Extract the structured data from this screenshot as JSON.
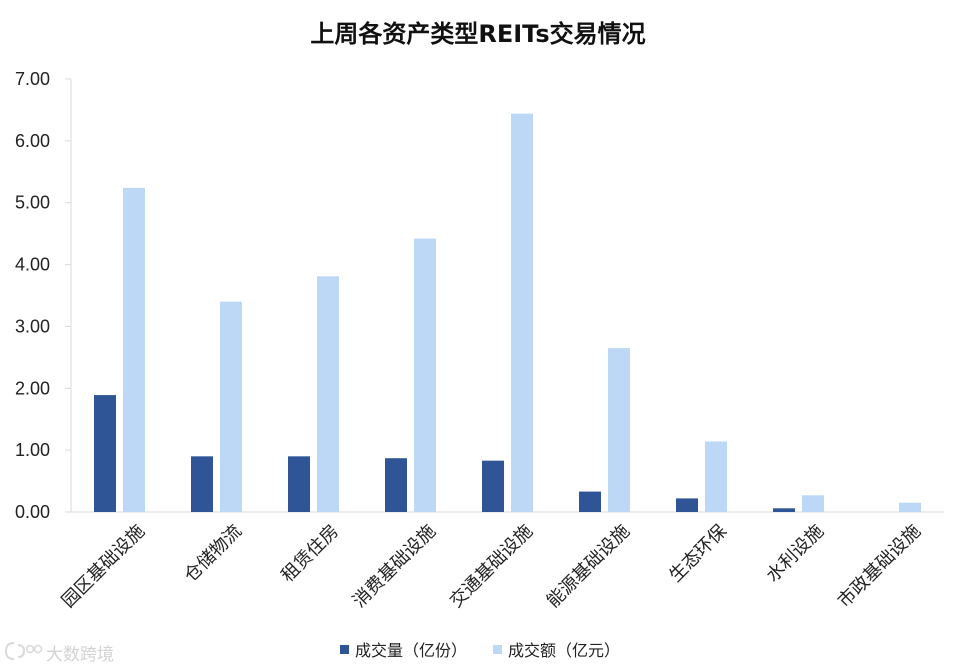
{
  "chart_data": {
    "type": "bar",
    "title": "上周各资产类型REITs交易情况",
    "xlabel": "",
    "ylabel": "",
    "ylim": [
      0,
      7
    ],
    "yticks": [
      "0.00",
      "1.00",
      "2.00",
      "3.00",
      "4.00",
      "5.00",
      "6.00",
      "7.00"
    ],
    "grid": false,
    "legend_position": "bottom",
    "categories": [
      "园区基础设施",
      "仓储物流",
      "租赁住房",
      "消费基础设施",
      "交通基础设施",
      "能源基础设施",
      "生态环保",
      "水利设施",
      "市政基础设施"
    ],
    "series": [
      {
        "name": "成交量（亿份）",
        "color": "#2f5597",
        "values": [
          1.89,
          0.9,
          0.9,
          0.87,
          0.83,
          0.33,
          0.22,
          0.06,
          0.0
        ]
      },
      {
        "name": "成交额（亿元）",
        "color": "#bdd7f7",
        "values": [
          5.24,
          3.4,
          3.81,
          4.42,
          6.44,
          2.65,
          1.14,
          0.27,
          0.15
        ]
      }
    ]
  },
  "watermark": {
    "logo_text": "大数跨境"
  }
}
